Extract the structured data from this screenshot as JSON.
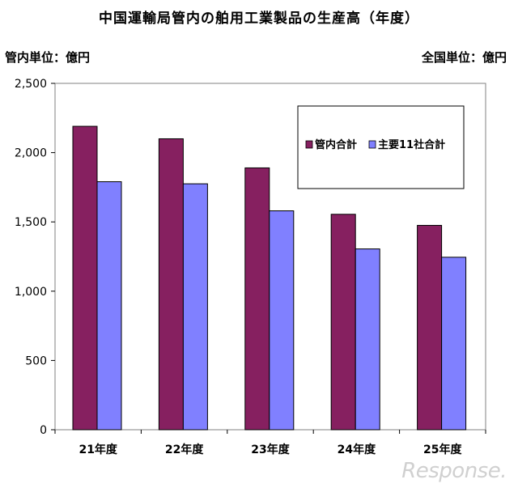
{
  "title": "中国運輸局管内の舶用工業製品の生産高（年度）",
  "unit_left": "管内単位：億円",
  "unit_right": "全国単位：億円",
  "watermark": "Response.",
  "chart_data": {
    "type": "bar",
    "categories": [
      "21年度",
      "22年度",
      "23年度",
      "24年度",
      "25年度"
    ],
    "series": [
      {
        "name": "管内合計",
        "color": "#862060",
        "values": [
          2190,
          2100,
          1890,
          1555,
          1475
        ]
      },
      {
        "name": "主要11社合計",
        "color": "#8080ff",
        "values": [
          1790,
          1775,
          1580,
          1305,
          1245
        ]
      }
    ],
    "ylim": [
      0,
      2500
    ],
    "yticks": [
      0,
      500,
      1000,
      1500,
      2000,
      2500
    ],
    "ytick_labels": [
      "0",
      "500",
      "1,000",
      "1,500",
      "2,000",
      "2,500"
    ],
    "grid": false,
    "legend_position": "top-right"
  }
}
